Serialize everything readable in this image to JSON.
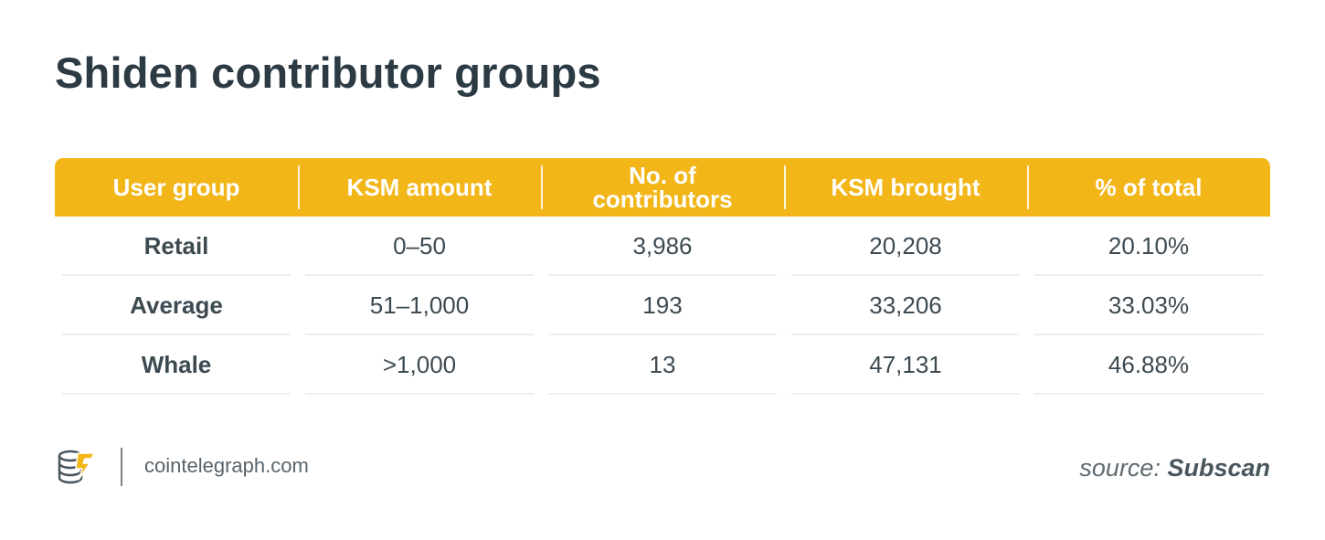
{
  "chart_data": {
    "type": "table",
    "title": "Shiden contributor groups",
    "columns": [
      "User group",
      "KSM amount",
      "No. of\ncontributors",
      "KSM brought",
      "% of total"
    ],
    "rows": [
      [
        "Retail",
        "0–50",
        "3,986",
        "20,208",
        "20.10%"
      ],
      [
        "Average",
        "51–1,000",
        "193",
        "33,206",
        "33.03%"
      ],
      [
        "Whale",
        ">1,000",
        "13",
        "47,131",
        "46.88%"
      ]
    ]
  },
  "footer": {
    "site": "cointelegraph.com",
    "source_label": "source: ",
    "source_name": "Subscan",
    "logo_icon": "cointelegraph-logo-icon"
  },
  "colors": {
    "header_bg": "#f2b619",
    "header_text": "#ffffff",
    "body_text": "#3d4a52",
    "title_text": "#2c3a44"
  }
}
